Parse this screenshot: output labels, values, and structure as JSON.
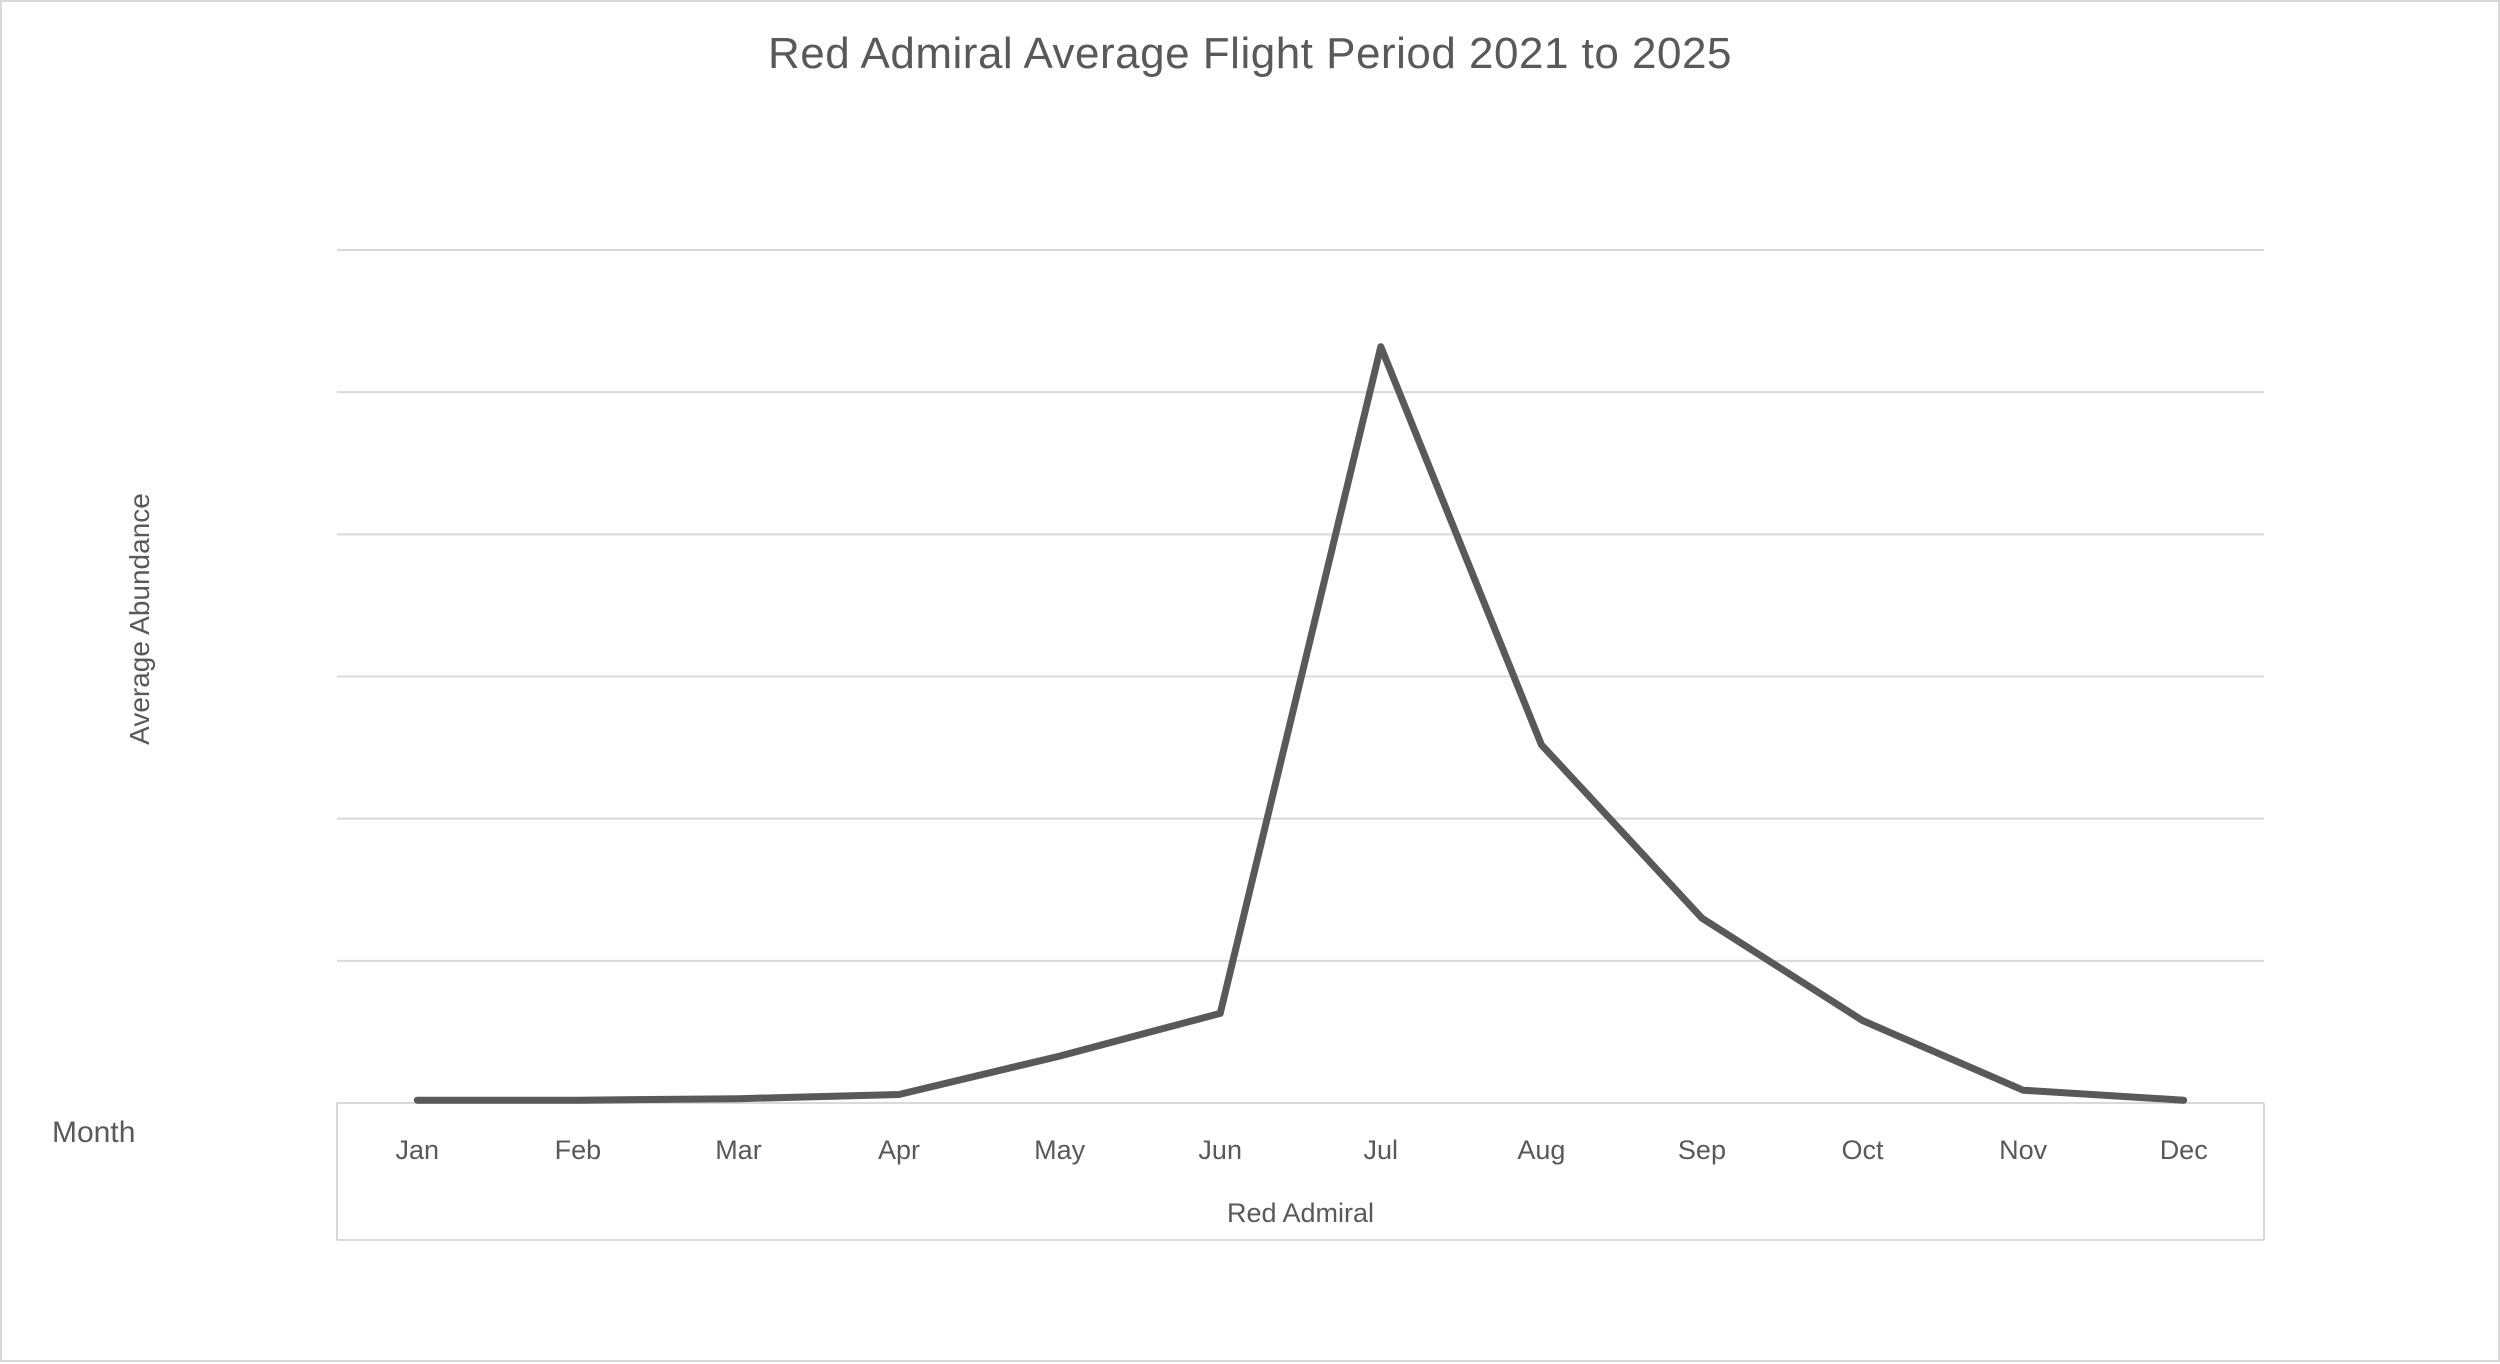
{
  "title": "Red Admiral Average Flight Period 2021 to 2025",
  "axes": {
    "y_label": "Average Abundance",
    "x_label": "Month",
    "series_label": "Red Admiral"
  },
  "colors": {
    "line": "#595959",
    "grid": "#d9d9d9",
    "plot_border": "#d9d9d9",
    "text": "#595959",
    "background": "#ffffff"
  },
  "chart_data": {
    "type": "line",
    "title": "Red Admiral Average Flight Period 2021 to 2025",
    "xlabel": "Month",
    "ylabel": "Average Abundance",
    "categories": [
      "Jan",
      "Feb",
      "Mar",
      "Apr",
      "May",
      "Jun",
      "Jul",
      "Aug",
      "Sep",
      "Oct",
      "Nov",
      "Dec"
    ],
    "series": [
      {
        "name": "Red Admiral",
        "values": [
          0.02,
          0.02,
          0.03,
          0.06,
          0.33,
          0.63,
          5.32,
          2.52,
          1.3,
          0.58,
          0.09,
          0.02
        ]
      }
    ],
    "ylim": [
      0,
      6
    ],
    "y_gridline_step": 1,
    "y_tick_labels_shown": false,
    "grid": true,
    "legend": "none"
  }
}
